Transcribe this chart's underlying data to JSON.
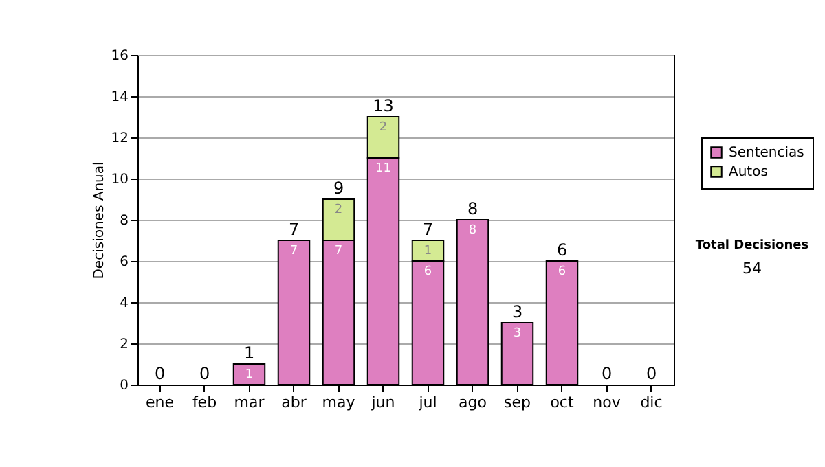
{
  "chart_data": {
    "type": "bar",
    "stacked": true,
    "ylabel": "Decisiones Anual",
    "categories": [
      "ene",
      "feb",
      "mar",
      "abr",
      "may",
      "jun",
      "jul",
      "ago",
      "sep",
      "oct",
      "nov",
      "dic"
    ],
    "series": [
      {
        "name": "Sentencias",
        "color": "#de7fc0",
        "values": [
          0,
          0,
          1,
          7,
          7,
          11,
          6,
          8,
          3,
          6,
          0,
          0
        ],
        "value_labels": [
          null,
          null,
          "1",
          "7",
          "7",
          "11",
          "6",
          "8",
          "3",
          "6",
          null,
          null
        ]
      },
      {
        "name": "Autos",
        "color": "#d4ea93",
        "values": [
          0,
          0,
          0,
          0,
          2,
          2,
          1,
          0,
          0,
          0,
          0,
          0
        ],
        "value_labels": [
          null,
          null,
          null,
          null,
          "2",
          "2",
          "1",
          null,
          null,
          null,
          null,
          null
        ]
      }
    ],
    "totals": [
      "0",
      "0",
      "1",
      "7",
      "9",
      "13",
      "7",
      "8",
      "3",
      "6",
      "0",
      "0"
    ],
    "ylim": [
      0,
      16
    ],
    "yticks": [
      0,
      2,
      4,
      6,
      8,
      10,
      12,
      14,
      16
    ],
    "grid": "y",
    "legend": "right",
    "annotations": [
      "Total Decisiones",
      "54"
    ]
  }
}
